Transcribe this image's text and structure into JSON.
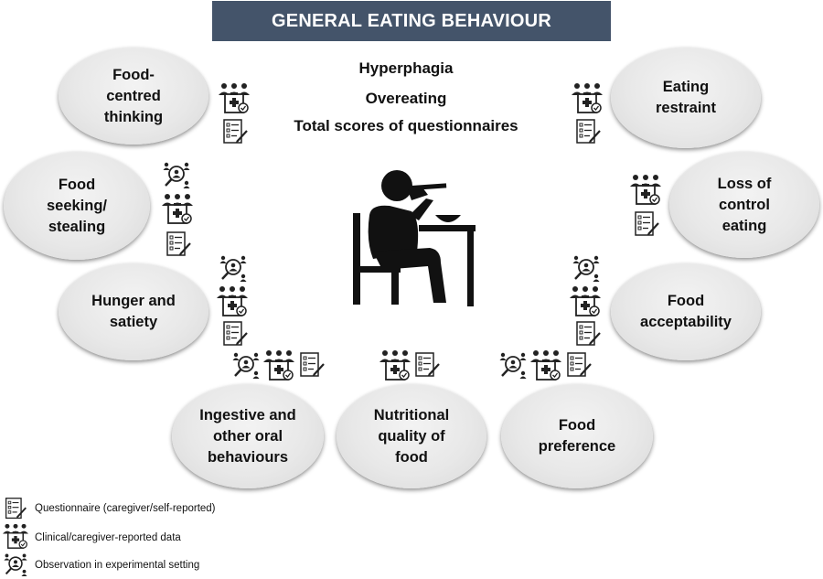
{
  "title": "GENERAL EATING BEHAVIOUR",
  "center": {
    "line1": "Hyperphagia",
    "line2": "Overeating",
    "line3": "Total scores of questionnaires"
  },
  "nodes": {
    "food_centred": [
      "Food-",
      "centred",
      "thinking"
    ],
    "food_seeking": [
      "Food",
      "seeking/",
      "stealing"
    ],
    "hunger": [
      "Hunger and",
      "satiety"
    ],
    "ingestive": [
      "Ingestive and",
      "other oral",
      "behaviours"
    ],
    "nutritional": [
      "Nutritional",
      "quality of",
      "food"
    ],
    "preference": [
      "Food",
      "preference"
    ],
    "acceptability": [
      "Food",
      "acceptability"
    ],
    "loss_control": [
      "Loss of",
      "control",
      "eating"
    ],
    "restraint": [
      "Eating",
      "restraint"
    ]
  },
  "legend": {
    "questionnaire": "Questionnaire (caregiver/self-reported)",
    "clinical": "Clinical/caregiver-reported data",
    "observation": "Observation in experimental setting"
  },
  "icons": {
    "questionnaire": "questionnaire-icon",
    "clinical": "clinical-data-icon",
    "observation": "observation-icon"
  }
}
